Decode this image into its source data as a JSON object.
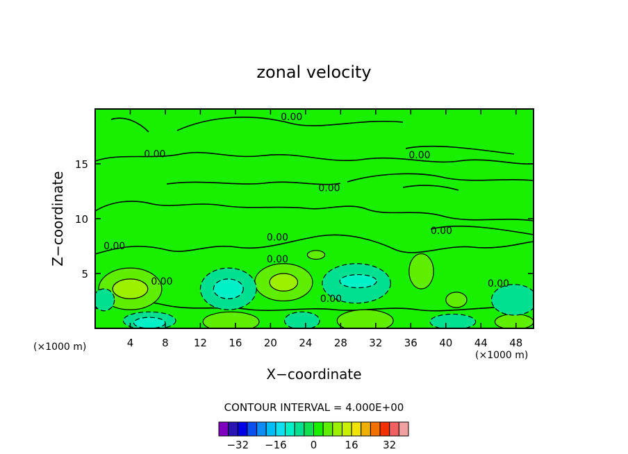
{
  "chart_data": {
    "type": "contour",
    "title": "zonal velocity",
    "xlabel": "X−coordinate",
    "ylabel": "Z−coordinate",
    "x_unit_label": "(×1000 m)",
    "y_unit_label": "(×1000 m)",
    "xlim": [
      0,
      50
    ],
    "ylim": [
      0,
      20
    ],
    "x_ticks": [
      4,
      8,
      12,
      16,
      20,
      24,
      28,
      32,
      36,
      40,
      44,
      48
    ],
    "y_ticks": [
      5,
      10,
      15
    ],
    "contour_interval_text": "CONTOUR INTERVAL = 4.000E+00",
    "contour_interval": 4,
    "background_level": 0,
    "contour_labels": [
      {
        "text": "0.00",
        "x": 22.4,
        "y": 19.0
      },
      {
        "text": "0.00",
        "x": 6.8,
        "y": 15.6
      },
      {
        "text": "0.00",
        "x": 37.0,
        "y": 15.5
      },
      {
        "text": "0.00",
        "x": 26.7,
        "y": 12.5
      },
      {
        "text": "0.00",
        "x": 39.5,
        "y": 8.6
      },
      {
        "text": "0.00",
        "x": 20.8,
        "y": 8.0
      },
      {
        "text": "0.00",
        "x": 2.2,
        "y": 7.2
      },
      {
        "text": "0.00",
        "x": 20.8,
        "y": 6.0
      },
      {
        "text": "0.00",
        "x": 7.6,
        "y": 4.0
      },
      {
        "text": "0.00",
        "x": 26.9,
        "y": 2.4
      },
      {
        "text": "0.00",
        "x": 46.0,
        "y": 3.8
      }
    ],
    "features": [
      {
        "kind": "positive",
        "level": 8,
        "x": 4.0,
        "y": 3.6,
        "rx": 2.0,
        "ry": 0.9
      },
      {
        "kind": "positive",
        "level": 4,
        "x": 4.0,
        "y": 3.6,
        "rx": 3.6,
        "ry": 1.9
      },
      {
        "kind": "positive",
        "level": 8,
        "x": 21.5,
        "y": 4.2,
        "rx": 1.6,
        "ry": 0.8
      },
      {
        "kind": "positive",
        "level": 4,
        "x": 21.5,
        "y": 4.2,
        "rx": 3.3,
        "ry": 1.7
      },
      {
        "kind": "positive",
        "level": 4,
        "x": 37.2,
        "y": 5.2,
        "rx": 1.4,
        "ry": 1.6
      },
      {
        "kind": "positive",
        "level": 4,
        "x": 30.8,
        "y": 0.7,
        "rx": 3.2,
        "ry": 1.0
      },
      {
        "kind": "positive",
        "level": 4,
        "x": 15.5,
        "y": 0.6,
        "rx": 3.2,
        "ry": 0.9
      },
      {
        "kind": "positive",
        "level": 4,
        "x": 47.8,
        "y": 0.6,
        "rx": 2.2,
        "ry": 0.7
      },
      {
        "kind": "positive",
        "level": 4,
        "x": 41.2,
        "y": 2.6,
        "rx": 1.2,
        "ry": 0.7
      },
      {
        "kind": "positive",
        "level": 4,
        "x": 25.2,
        "y": 6.7,
        "rx": 1.0,
        "ry": 0.4
      },
      {
        "kind": "negative",
        "level": -4,
        "x": 15.2,
        "y": 3.6,
        "rx": 3.2,
        "ry": 1.9
      },
      {
        "kind": "negative",
        "level": -8,
        "x": 15.2,
        "y": 3.6,
        "rx": 1.7,
        "ry": 0.9
      },
      {
        "kind": "negative",
        "level": -4,
        "x": 29.8,
        "y": 4.1,
        "rx": 3.9,
        "ry": 1.8
      },
      {
        "kind": "negative",
        "level": -8,
        "x": 30.0,
        "y": 4.3,
        "rx": 2.1,
        "ry": 0.6
      },
      {
        "kind": "negative",
        "level": -4,
        "x": 47.8,
        "y": 2.6,
        "rx": 2.6,
        "ry": 1.4
      },
      {
        "kind": "negative",
        "level": -4,
        "x": 6.2,
        "y": 0.7,
        "rx": 3.0,
        "ry": 0.8
      },
      {
        "kind": "negative",
        "level": -8,
        "x": 6.2,
        "y": 0.5,
        "rx": 1.8,
        "ry": 0.5
      },
      {
        "kind": "negative",
        "level": -4,
        "x": 23.6,
        "y": 0.7,
        "rx": 2.0,
        "ry": 0.8
      },
      {
        "kind": "negative",
        "level": -4,
        "x": 40.8,
        "y": 0.6,
        "rx": 2.6,
        "ry": 0.7
      },
      {
        "kind": "negative",
        "level": -4,
        "x": 1.0,
        "y": 2.6,
        "rx": 1.2,
        "ry": 1.0
      }
    ],
    "colorbar": {
      "levels": [
        -36,
        -32,
        -28,
        -24,
        -20,
        -16,
        -12,
        -8,
        -4,
        0,
        4,
        8,
        12,
        16,
        20,
        24,
        28,
        32,
        36
      ],
      "colors": [
        "#7f00bf",
        "#2a14b3",
        "#0000e6",
        "#0a4ff0",
        "#0e8cf5",
        "#00bdf5",
        "#10e0f0",
        "#00f0c8",
        "#00e090",
        "#10e050",
        "#18f000",
        "#60ee00",
        "#9cf000",
        "#c8f000",
        "#f0e400",
        "#f0b000",
        "#f07000",
        "#f03000",
        "#f06060",
        "#f0a0a0"
      ],
      "tick_labels": [
        "−32",
        "−16",
        "0",
        "16",
        "32"
      ],
      "tick_values": [
        -32,
        -16,
        0,
        16,
        32
      ]
    }
  }
}
